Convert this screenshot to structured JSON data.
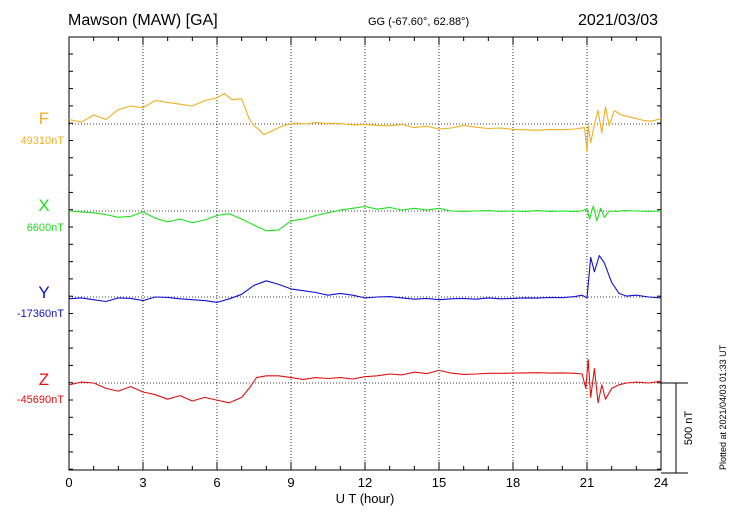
{
  "header": {
    "title": "Mawson (MAW)  [GA]",
    "coords": "GG (-67.60°,  62.88°)",
    "date": "2021/03/03"
  },
  "footer": {
    "plotted": "Plotted at 2021/04/03 01:33 UT"
  },
  "scale_label": "500 nT",
  "colors": {
    "F": "#f0b020",
    "X": "#20e020",
    "Y": "#1010d0",
    "Z": "#e01010"
  },
  "chart_data": {
    "type": "line",
    "xlabel": "U T (hour)",
    "xlim": [
      0,
      24
    ],
    "xticks": [
      0,
      3,
      6,
      9,
      12,
      15,
      18,
      21,
      24
    ],
    "xtick_labels": [
      "0",
      "3",
      "6",
      "9",
      "12",
      "15",
      "18",
      "21",
      "24"
    ],
    "grid": true,
    "y_units": "nT",
    "scale_bar_nT": 500,
    "series": [
      {
        "name": "F",
        "baseline_label": "49310nT",
        "baseline": 49310,
        "x": [
          0,
          0.5,
          1,
          1.5,
          2,
          2.5,
          3,
          3.5,
          4,
          4.5,
          5,
          5.5,
          6,
          6.3,
          6.6,
          7,
          7.3,
          7.5,
          7.7,
          7.9,
          8.2,
          8.5,
          8.8,
          9.2,
          9.6,
          10,
          10.5,
          11,
          11.5,
          12,
          12.5,
          13,
          13.5,
          14,
          14.5,
          15,
          15.5,
          16,
          16.5,
          17,
          17.5,
          18,
          18.5,
          19,
          19.5,
          20,
          20.5,
          20.9,
          21.0,
          21.05,
          21.15,
          21.3,
          21.45,
          21.6,
          21.75,
          21.9,
          22.1,
          22.4,
          22.7,
          23,
          23.3,
          23.6,
          24
        ],
        "y": [
          49335,
          49320,
          49360,
          49335,
          49390,
          49410,
          49400,
          49440,
          49430,
          49420,
          49410,
          49440,
          49455,
          49480,
          49445,
          49450,
          49340,
          49300,
          49280,
          49250,
          49270,
          49290,
          49305,
          49315,
          49310,
          49318,
          49312,
          49312,
          49305,
          49308,
          49302,
          49300,
          49308,
          49290,
          49298,
          49282,
          49288,
          49302,
          49292,
          49285,
          49288,
          49280,
          49278,
          49275,
          49280,
          49278,
          49282,
          49290,
          49155,
          49300,
          49205,
          49310,
          49385,
          49260,
          49405,
          49300,
          49385,
          49360,
          49350,
          49340,
          49330,
          49325,
          49340
        ]
      },
      {
        "name": "X",
        "baseline_label": "6600nT",
        "baseline": 6600,
        "x": [
          0,
          0.5,
          1,
          1.5,
          2,
          2.5,
          3,
          3.5,
          4,
          4.5,
          5,
          5.5,
          6,
          6.5,
          7,
          7.3,
          7.6,
          8,
          8.5,
          9,
          9.5,
          10,
          10.5,
          11,
          11.5,
          12,
          12.5,
          13,
          13.5,
          14,
          14.5,
          15,
          15.5,
          16,
          16.5,
          17,
          17.5,
          18,
          18.5,
          19,
          19.5,
          20,
          20.5,
          20.8,
          21,
          21.1,
          21.25,
          21.4,
          21.55,
          21.7,
          21.9,
          22.2,
          22.5,
          23,
          23.5,
          24
        ],
        "y": [
          6600,
          6595,
          6590,
          6580,
          6565,
          6570,
          6595,
          6560,
          6540,
          6555,
          6535,
          6550,
          6575,
          6585,
          6555,
          6535,
          6515,
          6490,
          6495,
          6545,
          6555,
          6575,
          6590,
          6605,
          6615,
          6625,
          6610,
          6620,
          6605,
          6615,
          6605,
          6615,
          6600,
          6598,
          6600,
          6602,
          6598,
          6600,
          6598,
          6602,
          6598,
          6600,
          6598,
          6600,
          6612,
          6555,
          6628,
          6545,
          6615,
          6565,
          6600,
          6598,
          6602,
          6600,
          6598,
          6600
        ]
      },
      {
        "name": "Y",
        "baseline_label": "-17360nT",
        "baseline": -17360,
        "x": [
          0,
          0.5,
          1,
          1.5,
          2,
          2.5,
          3,
          3.5,
          4,
          4.5,
          5,
          5.5,
          6,
          6.5,
          7,
          7.5,
          8,
          8.5,
          9,
          9.5,
          10,
          10.5,
          11,
          11.5,
          12,
          12.5,
          13,
          13.5,
          14,
          14.5,
          15,
          15.5,
          16,
          16.5,
          17,
          17.5,
          18,
          18.5,
          19,
          19.5,
          20,
          20.5,
          20.8,
          21,
          21.15,
          21.3,
          21.5,
          21.7,
          22,
          22.3,
          22.6,
          23,
          23.5,
          24
        ],
        "y": [
          -17370,
          -17365,
          -17375,
          -17385,
          -17365,
          -17368,
          -17380,
          -17360,
          -17362,
          -17370,
          -17375,
          -17380,
          -17390,
          -17370,
          -17345,
          -17295,
          -17270,
          -17290,
          -17315,
          -17325,
          -17335,
          -17350,
          -17340,
          -17350,
          -17365,
          -17360,
          -17358,
          -17365,
          -17372,
          -17368,
          -17375,
          -17370,
          -17368,
          -17372,
          -17365,
          -17370,
          -17368,
          -17365,
          -17366,
          -17362,
          -17364,
          -17358,
          -17350,
          -17365,
          -17140,
          -17220,
          -17130,
          -17170,
          -17280,
          -17340,
          -17355,
          -17350,
          -17360,
          -17365
        ]
      },
      {
        "name": "Z",
        "baseline_label": "-45690nT",
        "baseline": -45690,
        "x": [
          0,
          0.5,
          1,
          1.5,
          2,
          2.5,
          3,
          3.5,
          4,
          4.5,
          5,
          5.5,
          6,
          6.5,
          7,
          7.3,
          7.6,
          8,
          8.5,
          9,
          9.5,
          10,
          10.5,
          11,
          11.5,
          12,
          12.5,
          13,
          13.5,
          14,
          14.5,
          15,
          15.5,
          16,
          16.5,
          17,
          17.5,
          18,
          18.5,
          19,
          19.5,
          20,
          20.5,
          20.8,
          20.95,
          21.05,
          21.15,
          21.3,
          21.45,
          21.6,
          21.75,
          22,
          22.3,
          22.6,
          23,
          23.5,
          24
        ],
        "y": [
          -45700,
          -45685,
          -45690,
          -45720,
          -45735,
          -45710,
          -45740,
          -45755,
          -45780,
          -45760,
          -45790,
          -45770,
          -45785,
          -45800,
          -45770,
          -45720,
          -45660,
          -45650,
          -45650,
          -45660,
          -45670,
          -45660,
          -45665,
          -45660,
          -45668,
          -45655,
          -45650,
          -45640,
          -45645,
          -45630,
          -45638,
          -45620,
          -45635,
          -45642,
          -45640,
          -45636,
          -45636,
          -45635,
          -45634,
          -45633,
          -45635,
          -45634,
          -45636,
          -45640,
          -45720,
          -45560,
          -45770,
          -45610,
          -45800,
          -45700,
          -45780,
          -45720,
          -45700,
          -45690,
          -45685,
          -45690,
          -45680
        ]
      }
    ]
  }
}
